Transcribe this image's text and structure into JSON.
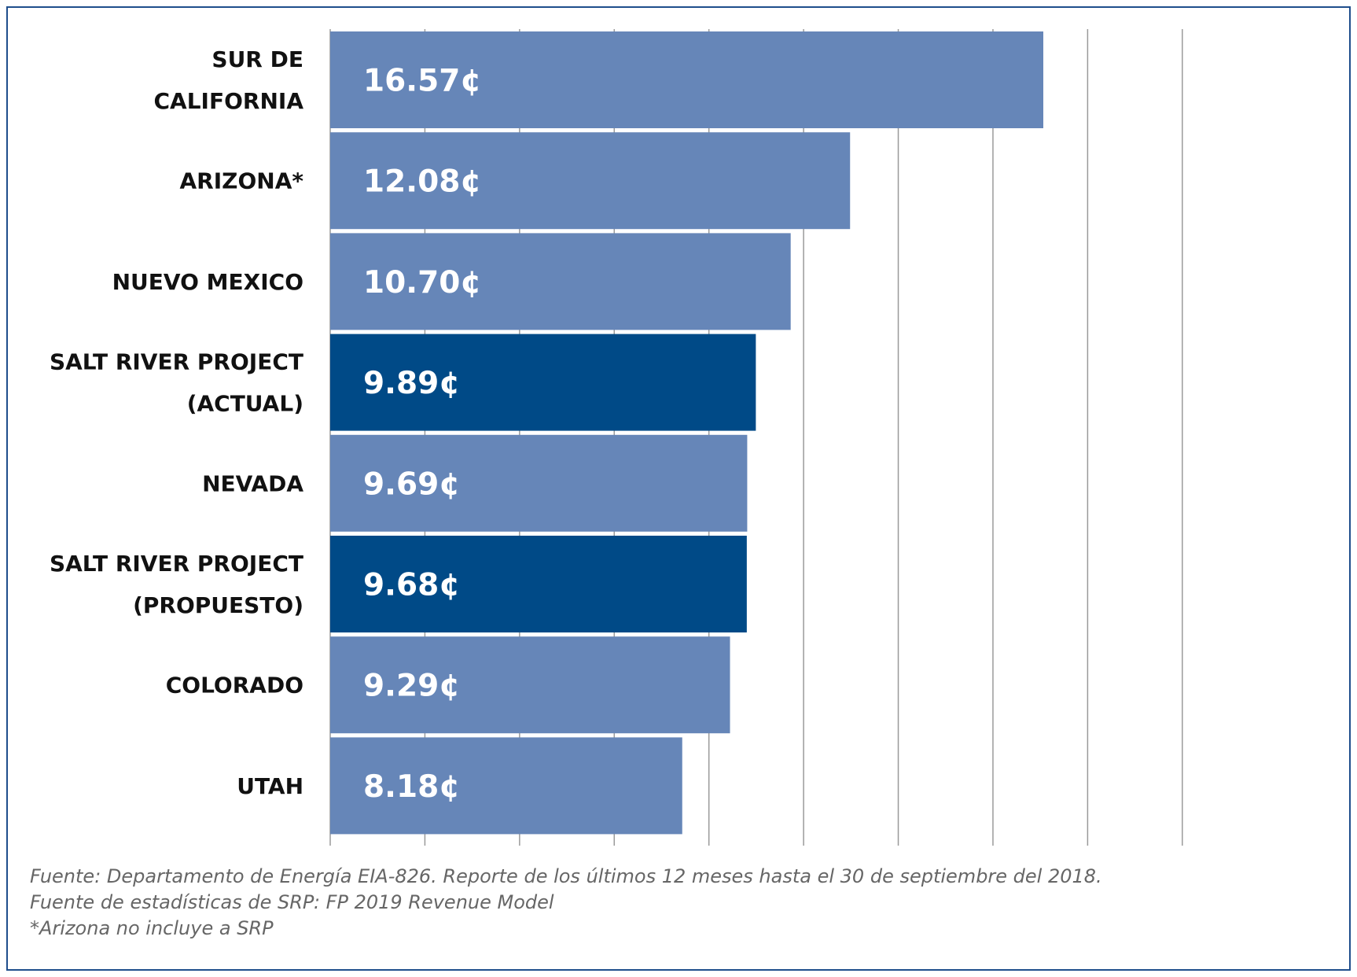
{
  "chart_data": {
    "type": "bar",
    "orientation": "horizontal",
    "categories": [
      [
        "SUR DE",
        "CALIFORNIA"
      ],
      [
        "ARIZONA*"
      ],
      [
        "NUEVO MEXICO"
      ],
      [
        "SALT RIVER PROJECT",
        "(ACTUAL)"
      ],
      [
        "NEVADA"
      ],
      [
        "SALT RIVER PROJECT",
        "(PROPUESTO)"
      ],
      [
        "COLORADO"
      ],
      [
        "UTAH"
      ]
    ],
    "values": [
      16.57,
      12.08,
      10.7,
      9.89,
      9.69,
      9.68,
      9.29,
      8.18
    ],
    "value_labels": [
      "16.57¢",
      "12.08¢",
      "10.70¢",
      "9.89¢",
      "9.69¢",
      "9.68¢",
      "9.29¢",
      "8.18¢"
    ],
    "highlighted": [
      false,
      false,
      false,
      true,
      false,
      true,
      false,
      false
    ],
    "xlim": [
      0,
      22
    ],
    "gridline_step": 2.2,
    "grid": true,
    "title": "",
    "xlabel": "",
    "ylabel": ""
  },
  "colors": {
    "bar": "#6686b8",
    "bar_highlight": "#004a87",
    "gridline": "#9a9a9a",
    "frame": "#1f4e8c"
  },
  "footnotes": [
    "Fuente: Departamento de Energía EIA-826. Reporte de los últimos 12 meses hasta el 30 de septiembre del 2018.",
    "Fuente de estadísticas de SRP: FP 2019 Revenue Model",
    "*Arizona no incluye a SRP"
  ]
}
